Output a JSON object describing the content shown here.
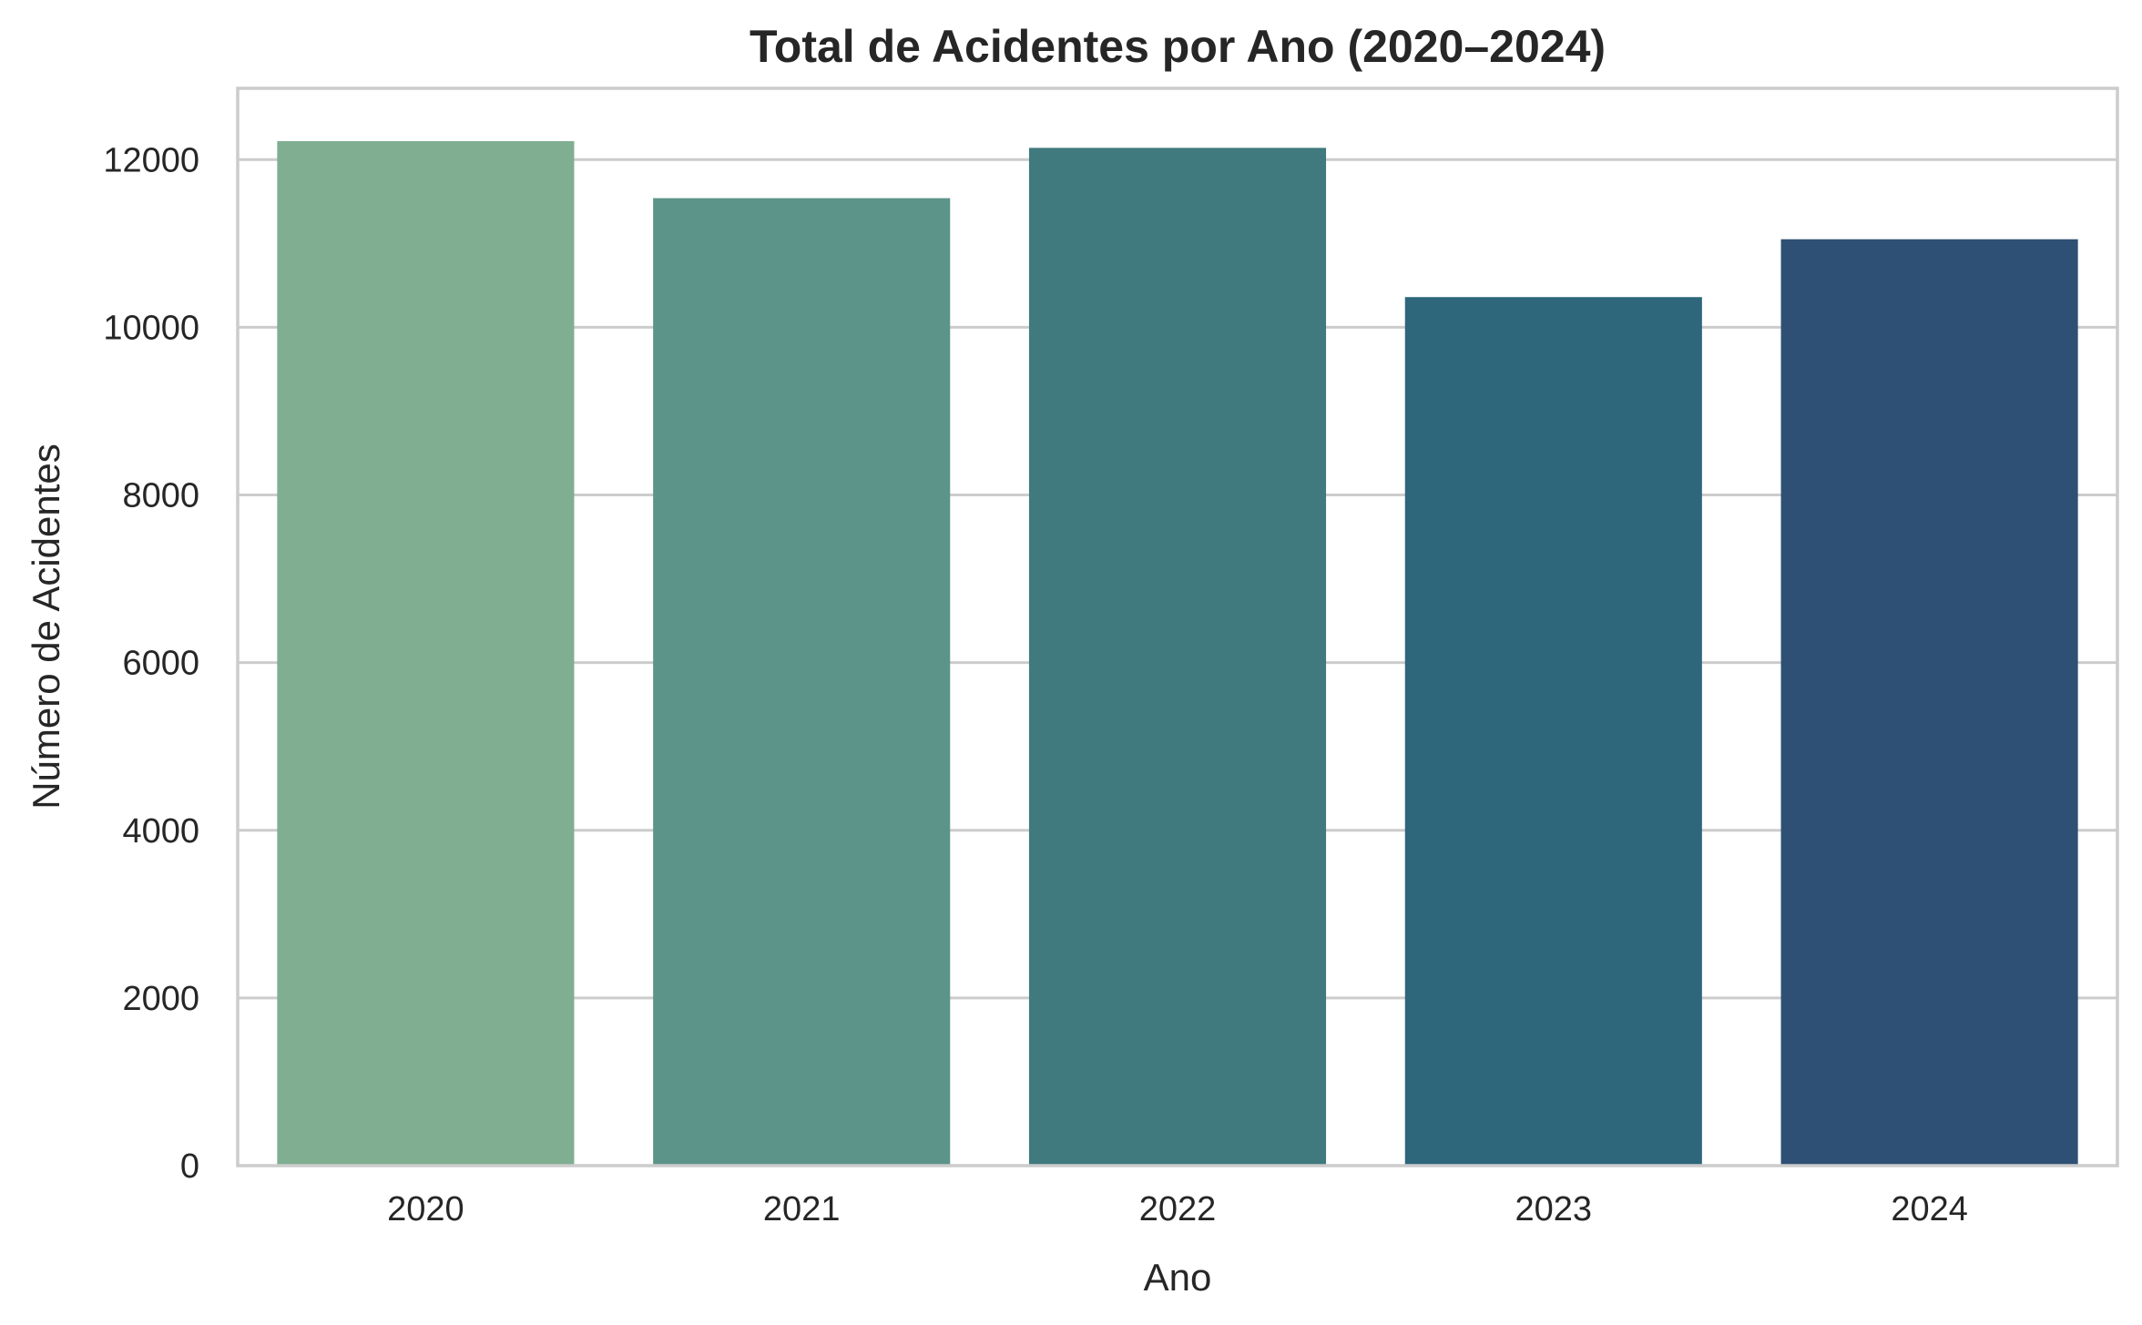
{
  "chart_data": {
    "type": "bar",
    "title": "Total de Acidentes por Ano (2020–2024)",
    "xlabel": "Ano",
    "ylabel": "Número de Acidentes",
    "categories": [
      "2020",
      "2021",
      "2022",
      "2023",
      "2024"
    ],
    "values": [
      12220,
      11540,
      12140,
      10360,
      11050
    ],
    "colors": [
      "#7fae91",
      "#5d9489",
      "#40797e",
      "#2e667b",
      "#2f5075"
    ],
    "ylim": [
      0,
      12850
    ],
    "yticks": [
      0,
      2000,
      4000,
      6000,
      8000,
      10000,
      12000
    ],
    "grid": "horizontal",
    "legend": "none"
  }
}
